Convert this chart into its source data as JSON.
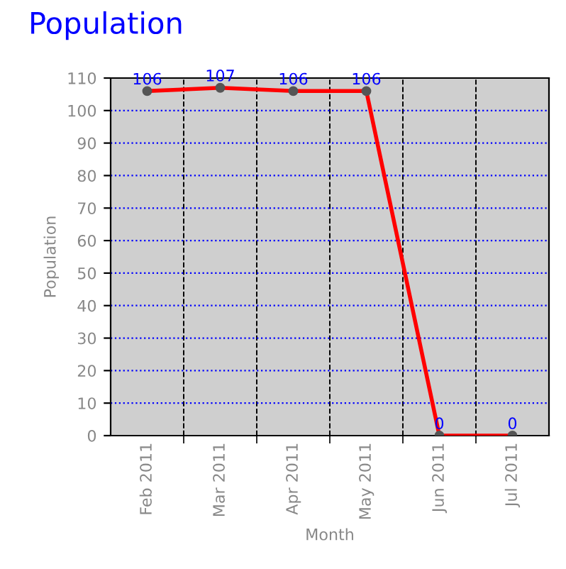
{
  "chart_data": {
    "type": "line",
    "title": "Population",
    "xlabel": "Month",
    "ylabel": "Population",
    "categories": [
      "Feb 2011",
      "Mar 2011",
      "Apr 2011",
      "May 2011",
      "Jun 2011",
      "Jul 2011"
    ],
    "series": [
      {
        "color": "#ff0000",
        "values": [
          106,
          107,
          106,
          106,
          0,
          0
        ]
      }
    ],
    "ylim": [
      0,
      110
    ],
    "yticks": [
      0,
      10,
      20,
      30,
      40,
      50,
      60,
      70,
      80,
      90,
      100,
      110
    ],
    "grid": true,
    "data_labels": true,
    "marker": "circle",
    "line_style": "solid"
  }
}
